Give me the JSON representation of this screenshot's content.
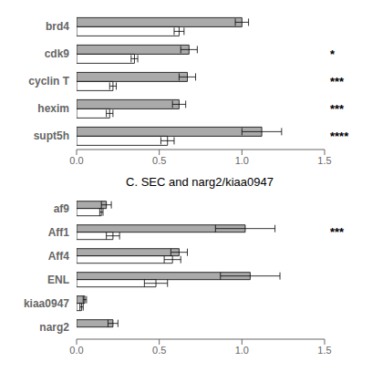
{
  "chart_data": [
    {
      "type": "bar",
      "orientation": "horizontal",
      "grid": false,
      "categories": [
        "brd4",
        "cdk9",
        "cyclin T",
        "hexim",
        "supt5h"
      ],
      "series": [
        {
          "color": "#aaaaaa",
          "values": [
            1.0,
            0.68,
            0.67,
            0.62,
            1.12
          ],
          "errors": [
            0.04,
            0.05,
            0.05,
            0.04,
            0.12
          ]
        },
        {
          "color": "#ffffff",
          "values": [
            0.62,
            0.35,
            0.22,
            0.2,
            0.55
          ],
          "errors": [
            0.03,
            0.02,
            0.02,
            0.02,
            0.04
          ]
        }
      ],
      "annotations": [
        {
          "category": "cdk9",
          "text": "*"
        },
        {
          "category": "cyclin T",
          "text": "***"
        },
        {
          "category": "hexim",
          "text": "***"
        },
        {
          "category": "supt5h",
          "text": "****"
        }
      ],
      "xlim": [
        0.0,
        1.5
      ],
      "xticks": [
        {
          "value": 0.0,
          "label": "0.0"
        },
        {
          "value": 0.5,
          "label": "0.5"
        },
        {
          "value": 1.0,
          "label": "1.0"
        },
        {
          "value": 1.5,
          "label": "1.5"
        }
      ]
    },
    {
      "type": "bar",
      "orientation": "horizontal",
      "grid": false,
      "title": "C. SEC and narg2/kiaa0947",
      "categories": [
        "af9",
        "Aff1",
        "Aff4",
        "ENL",
        "kiaa0947",
        "narg2"
      ],
      "series": [
        {
          "color": "#aaaaaa",
          "values": [
            0.18,
            1.02,
            0.62,
            1.05,
            0.05,
            0.22
          ],
          "errors": [
            0.03,
            0.18,
            0.05,
            0.18,
            0.01,
            0.03
          ]
        },
        {
          "color": "#ffffff",
          "values": [
            0.15,
            0.22,
            0.58,
            0.48,
            0.03,
            0.0
          ],
          "errors": [
            0.01,
            0.04,
            0.05,
            0.07,
            0.01,
            0.0
          ]
        }
      ],
      "annotations": [
        {
          "category": "Aff1",
          "text": "***"
        }
      ],
      "xlim": [
        0.0,
        1.5
      ],
      "xticks": [
        {
          "value": 0.0,
          "label": "0.0"
        },
        {
          "value": 0.5,
          "label": "0.5"
        },
        {
          "value": 1.0,
          "label": "1.0"
        },
        {
          "value": 1.5,
          "label": "1.5"
        }
      ]
    }
  ]
}
